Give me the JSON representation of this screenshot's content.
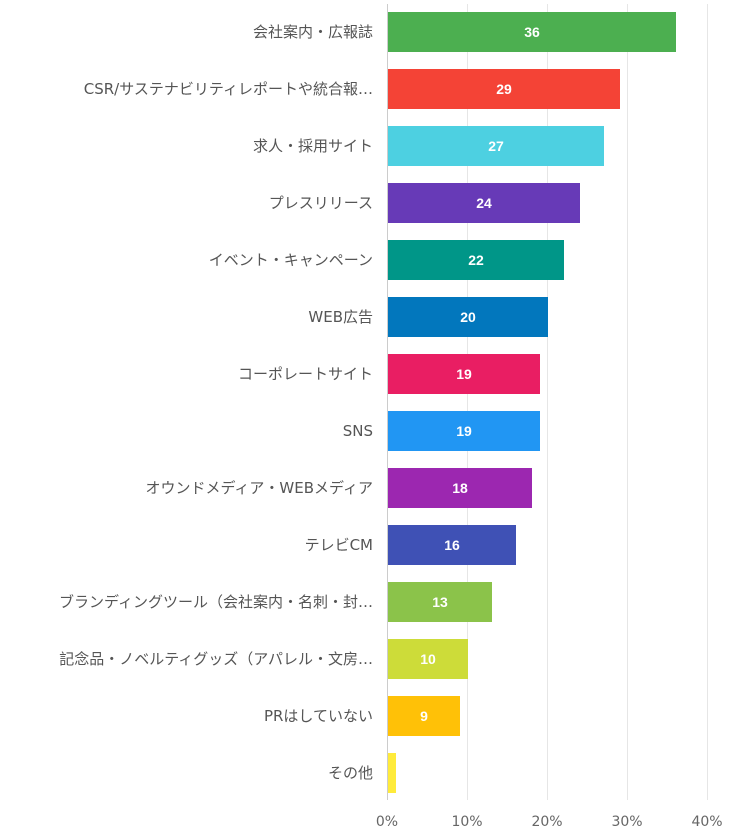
{
  "chart_data": {
    "type": "bar",
    "orientation": "horizontal",
    "categories": [
      "会社案内・広報誌",
      "CSR/サステナビリティレポートや統合報…",
      "求人・採用サイト",
      "プレスリリース",
      "イベント・キャンペーン",
      "WEB広告",
      "コーポレートサイト",
      "SNS",
      "オウンドメディア・WEBメディア",
      "テレビCM",
      "ブランディングツール（会社案内・名刺・封…",
      "記念品・ノベルティグッズ（アパレル・文房…",
      "PRはしていない",
      "その他"
    ],
    "values": [
      36,
      29,
      27,
      24,
      22,
      20,
      19,
      19,
      18,
      16,
      13,
      10,
      9,
      1
    ],
    "value_labels": [
      "36",
      "29",
      "27",
      "24",
      "22",
      "20",
      "19",
      "19",
      "18",
      "16",
      "13",
      "10",
      "9",
      ""
    ],
    "colors": [
      "#4caf50",
      "#f44336",
      "#4dd0e1",
      "#673ab7",
      "#009688",
      "#0277bd",
      "#e91e63",
      "#2196f3",
      "#9c27b0",
      "#3f51b5",
      "#8bc34a",
      "#cddc39",
      "#ffc107",
      "#ffeb3b"
    ],
    "xlim": [
      0,
      45
    ],
    "xticks": [
      0,
      10,
      20,
      30,
      40
    ],
    "xtick_labels": [
      "0%",
      "10%",
      "20%",
      "30%",
      "40%"
    ],
    "grid": true,
    "legend": "none"
  }
}
